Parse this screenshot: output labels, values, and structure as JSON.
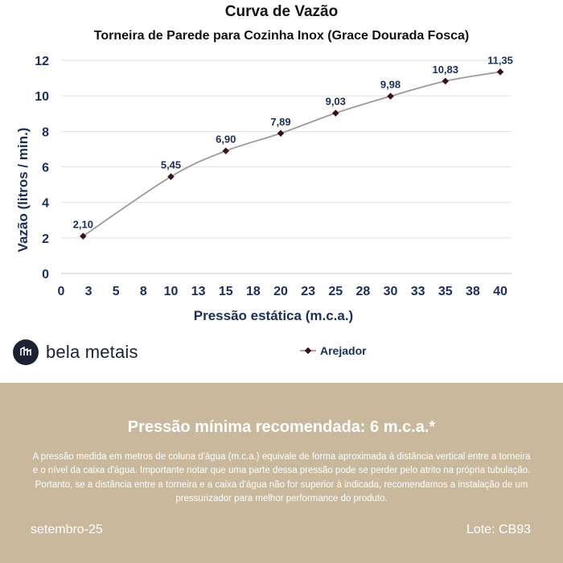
{
  "chart_data": {
    "type": "line",
    "title": "Curva de Vazão",
    "subtitle": "Torneira de Parede para Cozinha Inox (Grace Dourada Fosca)",
    "xlabel": "Pressão estática (m.c.a.)",
    "ylabel": "Vazão (litros / min.)",
    "xlim": [
      0,
      40
    ],
    "ylim": [
      0,
      12
    ],
    "x_ticks": [
      "0",
      "3",
      "5",
      "8",
      "10",
      "13",
      "15",
      "18",
      "20",
      "23",
      "25",
      "28",
      "30",
      "33",
      "35",
      "38",
      "40"
    ],
    "y_ticks": [
      0,
      2,
      4,
      6,
      8,
      10,
      12
    ],
    "grid": "horizontal",
    "legend_position": "bottom",
    "series": [
      {
        "name": "Arejador",
        "color": "#9a9a9a",
        "marker_color": "#3a1020",
        "x": [
          2,
          10,
          15,
          20,
          25,
          30,
          35,
          40
        ],
        "values": [
          2.1,
          5.45,
          6.9,
          7.89,
          9.03,
          9.98,
          10.83,
          11.35
        ],
        "labels": [
          "2,10",
          "5,45",
          "6,90",
          "7,89",
          "9,03",
          "9,98",
          "10,83",
          "11,35"
        ]
      }
    ]
  },
  "brand": {
    "name": "bela metais",
    "icon": "bela-metais-logo-icon"
  },
  "footer": {
    "headline": "Pressão mínima recomendada: 6 m.c.a.*",
    "note": "A pressão medida em metros de coluna d'água (m.c.a.) equivale de forma aproximada à distância vertical entre a torneira e o nível da caixa d'água. Importante notar que uma parte dessa pressão pode se perder pelo atrito na própria tubulação. Portanto, se a distância entre a torneira e a caixa d'água não for superior à indicada, recomendamos a instalação de um pressurizador para melhor performance do produto.",
    "date": "setembro-25",
    "lot": "Lote: CB93",
    "background": "#c9b89c"
  }
}
